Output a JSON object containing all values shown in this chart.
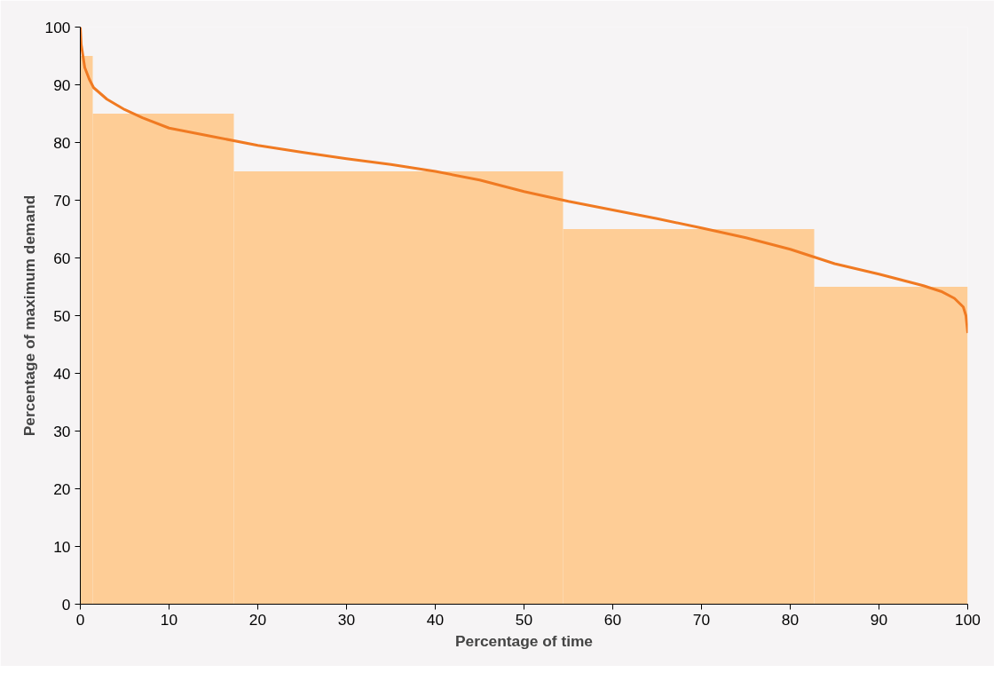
{
  "chart_data": {
    "type": "histogram",
    "xlabel": "Percentage of time",
    "ylabel": "Percentage of maximum demand",
    "bins": [
      0,
      1.4,
      17.3,
      54.4,
      82.7,
      100
    ],
    "values": [
      95,
      85,
      75,
      65,
      55
    ],
    "color": "#fecd96",
    "series": [
      {
        "type": "line",
        "color": "#f07a22",
        "x": [
          0,
          0.1,
          0.5,
          1,
          1.5,
          3,
          5,
          7,
          10,
          15,
          20,
          25,
          30,
          35,
          40,
          45,
          50,
          55,
          60,
          65,
          70,
          75,
          80,
          85,
          90,
          95,
          97,
          98.5,
          99.5,
          99.8,
          100
        ],
        "values": [
          100,
          97,
          93,
          91,
          89.5,
          87.5,
          85.7,
          84.3,
          82.5,
          81,
          79.5,
          78.3,
          77.2,
          76.2,
          75,
          73.5,
          71.5,
          69.8,
          68.3,
          66.8,
          65.2,
          63.5,
          61.5,
          59,
          57.2,
          55.2,
          54.2,
          53,
          51.5,
          50,
          47
        ]
      }
    ],
    "xlim": [
      0,
      100
    ],
    "ylim": [
      0,
      100
    ],
    "xticks": [
      0,
      10,
      20,
      30,
      40,
      50,
      60,
      70,
      80,
      90,
      100
    ],
    "yticks": [
      0,
      10,
      20,
      30,
      40,
      50,
      60,
      70,
      80,
      90,
      100
    ],
    "grid": false
  }
}
